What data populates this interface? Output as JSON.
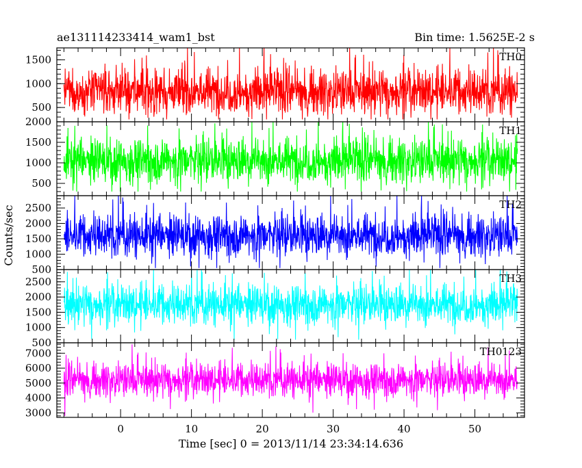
{
  "header": {
    "title": "ae131114233414_wam1_bst",
    "bin_time": "Bin time: 1.5625E-2 s"
  },
  "chart_data": {
    "type": "line",
    "title": "ae131114233414_wam1_bst",
    "subtitle": "Bin time: 1.5625E-2 s",
    "xlabel": "Time [sec] 0 = 2013/11/14 23:34:14.636",
    "ylabel": "Counts/sec",
    "xlim": [
      -9,
      57
    ],
    "data_xrange": [
      -8,
      56
    ],
    "x_ticks": [
      0,
      10,
      20,
      30,
      40,
      50
    ],
    "x_tick_labels": [
      "0",
      "10",
      "20",
      "30",
      "40",
      "50"
    ],
    "grid": false,
    "panels": [
      {
        "name": "TH0",
        "color": "#ff0000",
        "ylim": [
          200,
          1750
        ],
        "y_ticks": [
          500,
          1000,
          1500
        ],
        "y_tick_labels": [
          "500",
          "1000",
          "1500"
        ],
        "baseline": 830,
        "fluctuation": 420,
        "max": 1750,
        "min": 250
      },
      {
        "name": "TH1",
        "color": "#00ff00",
        "ylim": [
          200,
          2000
        ],
        "y_ticks": [
          500,
          1000,
          1500,
          2000
        ],
        "y_tick_labels": [
          "500",
          "1000",
          "1500",
          "2000"
        ],
        "baseline": 1050,
        "fluctuation": 480,
        "max": 2000,
        "min": 300
      },
      {
        "name": "TH2",
        "color": "#0000ff",
        "ylim": [
          500,
          2900
        ],
        "y_ticks": [
          500,
          1000,
          1500,
          2000,
          2500
        ],
        "y_tick_labels": [
          "500",
          "1000",
          "1500",
          "2000",
          "2500"
        ],
        "baseline": 1600,
        "fluctuation": 600,
        "max": 2900,
        "min": 550
      },
      {
        "name": "TH3",
        "color": "#00ffff",
        "ylim": [
          500,
          2900
        ],
        "y_ticks": [
          500,
          1000,
          1500,
          2000,
          2500
        ],
        "y_tick_labels": [
          "500",
          "1000",
          "1500",
          "2000",
          "2500"
        ],
        "baseline": 1750,
        "fluctuation": 580,
        "max": 2900,
        "min": 600
      },
      {
        "name": "TH0123",
        "color": "#ff00ff",
        "ylim": [
          2700,
          7700
        ],
        "y_ticks": [
          3000,
          4000,
          5000,
          6000,
          7000
        ],
        "y_tick_labels": [
          "3000",
          "4000",
          "5000",
          "6000",
          "7000"
        ],
        "baseline": 5200,
        "fluctuation": 1000,
        "max": 7700,
        "min": 2800
      }
    ]
  }
}
